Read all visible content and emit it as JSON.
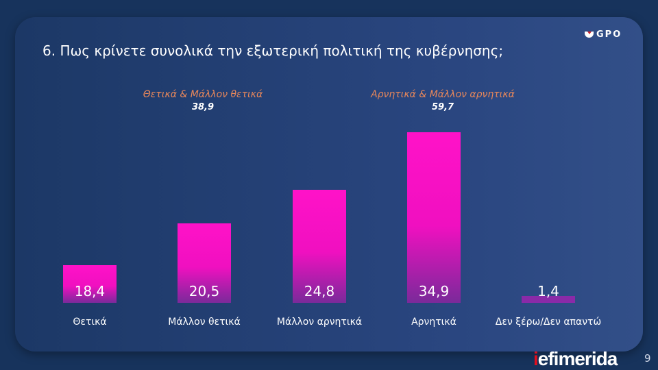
{
  "title": "6. Πως κρίνετε συνολικά την εξωτερική πολιτική της κυβέρνησης;",
  "logo": "GPO",
  "brand": {
    "i": "i",
    "rest": "efimerida"
  },
  "page_number": "9",
  "chart_data": {
    "type": "bar",
    "title": "6. Πως κρίνετε συνολικά την εξωτερική πολιτική της κυβέρνησης;",
    "categories": [
      "Θετικά",
      "Μάλλον θετικά",
      "Μάλλον αρνητικά",
      "Αρνητικά",
      "Δεν ξέρω/Δεν απαντώ"
    ],
    "values": [
      18.4,
      20.5,
      24.8,
      34.9,
      1.4
    ],
    "value_labels": [
      "18,4",
      "20,5",
      "24,8",
      "34,9",
      "1,4"
    ],
    "groups": [
      {
        "name": "Θετικά & Μάλλον θετικά",
        "value": "38,9"
      },
      {
        "name": "Αρνητικά & Μάλλον αρνητικά",
        "value": "59,7"
      }
    ],
    "bar_color": "#ff12c8",
    "grid": false
  }
}
